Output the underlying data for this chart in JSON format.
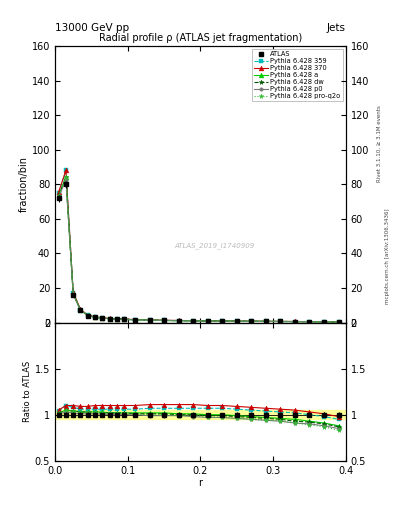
{
  "title": "Radial profile ρ (ATLAS jet fragmentation)",
  "top_label_left": "13000 GeV pp",
  "top_label_right": "Jets",
  "xlabel": "r",
  "ylabel_main": "fraction/bin",
  "ylabel_ratio": "Ratio to ATLAS",
  "right_label1": "Rivet 3.1.10, ≥ 3.1M events",
  "right_label2": "mcplots.cern.ch [arXiv:1306.3436]",
  "watermark": "ATLAS_2019_I1740909",
  "ylim_main": [
    0,
    160
  ],
  "ylim_ratio": [
    0.5,
    2.0
  ],
  "xlim": [
    0.0,
    0.4
  ],
  "r_values": [
    0.005,
    0.015,
    0.025,
    0.035,
    0.045,
    0.055,
    0.065,
    0.075,
    0.085,
    0.095,
    0.11,
    0.13,
    0.15,
    0.17,
    0.19,
    0.21,
    0.23,
    0.25,
    0.27,
    0.29,
    0.31,
    0.33,
    0.35,
    0.37,
    0.39
  ],
  "atlas_data": [
    72,
    80,
    16,
    7,
    4,
    3,
    2.5,
    2.2,
    2.0,
    1.8,
    1.6,
    1.4,
    1.2,
    1.1,
    1.0,
    0.9,
    0.85,
    0.8,
    0.75,
    0.7,
    0.65,
    0.6,
    0.55,
    0.5,
    0.45
  ],
  "atlas_err": [
    2,
    2,
    0.4,
    0.2,
    0.1,
    0.08,
    0.06,
    0.05,
    0.04,
    0.04,
    0.03,
    0.03,
    0.03,
    0.02,
    0.02,
    0.02,
    0.02,
    0.02,
    0.02,
    0.02,
    0.02,
    0.015,
    0.015,
    0.015,
    0.015
  ],
  "series": [
    {
      "label": "Pythia 6.428 359",
      "color": "#00bbbb",
      "linestyle": "--",
      "marker": "s",
      "markersize": 2.5,
      "ratio": [
        1.04,
        1.1,
        1.08,
        1.06,
        1.06,
        1.06,
        1.06,
        1.06,
        1.06,
        1.06,
        1.06,
        1.07,
        1.07,
        1.07,
        1.07,
        1.07,
        1.07,
        1.06,
        1.05,
        1.04,
        1.03,
        1.02,
        1.0,
        0.98,
        0.95
      ]
    },
    {
      "label": "Pythia 6.428 370",
      "color": "#cc0000",
      "linestyle": "-",
      "marker": "^",
      "markersize": 3.5,
      "ratio": [
        1.05,
        1.1,
        1.1,
        1.09,
        1.09,
        1.1,
        1.1,
        1.1,
        1.1,
        1.1,
        1.1,
        1.11,
        1.11,
        1.11,
        1.11,
        1.1,
        1.1,
        1.09,
        1.08,
        1.07,
        1.06,
        1.05,
        1.03,
        1.01,
        0.98
      ]
    },
    {
      "label": "Pythia 6.428 a",
      "color": "#00cc00",
      "linestyle": "-",
      "marker": "^",
      "markersize": 3.5,
      "ratio": [
        1.02,
        1.05,
        1.04,
        1.03,
        1.03,
        1.03,
        1.03,
        1.02,
        1.02,
        1.02,
        1.02,
        1.02,
        1.02,
        1.01,
        1.01,
        1.0,
        1.0,
        0.99,
        0.98,
        0.97,
        0.96,
        0.95,
        0.93,
        0.91,
        0.88
      ]
    },
    {
      "label": "Pythia 6.428 dw",
      "color": "#005500",
      "linestyle": "--",
      "marker": "*",
      "markersize": 3.5,
      "ratio": [
        1.02,
        1.05,
        1.04,
        1.03,
        1.03,
        1.03,
        1.02,
        1.02,
        1.02,
        1.02,
        1.01,
        1.01,
        1.01,
        1.0,
        1.0,
        0.99,
        0.99,
        0.98,
        0.97,
        0.96,
        0.95,
        0.93,
        0.92,
        0.9,
        0.87
      ]
    },
    {
      "label": "Pythia 6.428 p0",
      "color": "#777777",
      "linestyle": "-",
      "marker": "o",
      "markersize": 2.5,
      "ratio": [
        1.01,
        1.03,
        1.02,
        1.01,
        1.01,
        1.01,
        1.01,
        1.0,
        1.0,
        1.0,
        1.0,
        0.99,
        0.99,
        0.99,
        0.98,
        0.97,
        0.97,
        0.96,
        0.95,
        0.94,
        0.93,
        0.91,
        0.9,
        0.88,
        0.85
      ]
    },
    {
      "label": "Pythia 6.428 pro-q2o",
      "color": "#33bb33",
      "linestyle": ":",
      "marker": "*",
      "markersize": 3.5,
      "ratio": [
        1.02,
        1.05,
        1.04,
        1.03,
        1.03,
        1.03,
        1.02,
        1.02,
        1.02,
        1.01,
        1.01,
        1.0,
        1.0,
        0.99,
        0.99,
        0.98,
        0.97,
        0.96,
        0.95,
        0.94,
        0.93,
        0.91,
        0.89,
        0.87,
        0.83
      ]
    }
  ],
  "atlas_band_color": "#ffff99",
  "background_color": "#ffffff",
  "yticks_main": [
    0,
    20,
    40,
    60,
    80,
    100,
    120,
    140,
    160
  ],
  "yticks_ratio": [
    0.5,
    1.0,
    1.5,
    2.0
  ],
  "xticks": [
    0.0,
    0.1,
    0.2,
    0.3,
    0.4
  ]
}
